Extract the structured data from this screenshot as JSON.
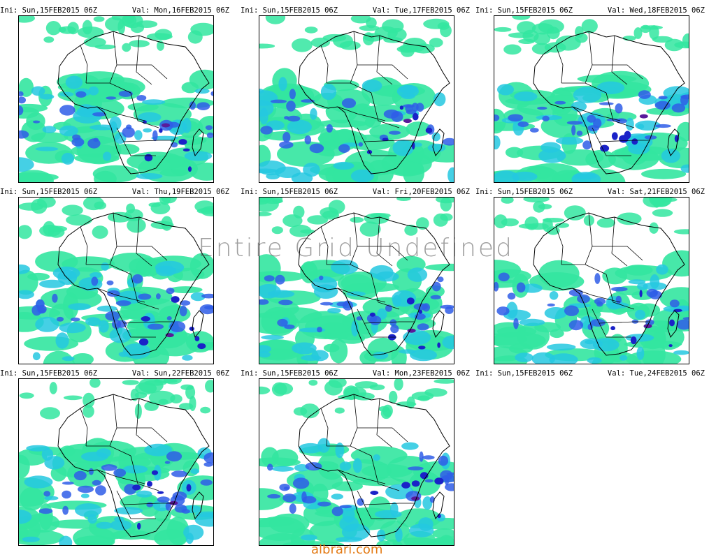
{
  "panels": [
    {
      "ini": "Ini: Sun,15FEB2015 06Z",
      "val": "Val: Mon,16FEB2015 06Z",
      "has_map": true
    },
    {
      "ini": "Ini: Sun,15FEB2015 06Z",
      "val": "Val: Tue,17FEB2015 06Z",
      "has_map": true
    },
    {
      "ini": "Ini: Sun,15FEB2015 06Z",
      "val": "Val: Wed,18FEB2015 06Z",
      "has_map": true
    },
    {
      "ini": "Ini: Sun,15FEB2015 06Z",
      "val": "Val: Thu,19FEB2015 06Z",
      "has_map": true
    },
    {
      "ini": "Ini: Sun,15FEB2015 06Z",
      "val": "Val: Fri,20FEB2015 06Z",
      "has_map": true
    },
    {
      "ini": "Ini: Sun,15FEB2015 06Z",
      "val": "Val: Sat,21FEB2015 06Z",
      "has_map": true
    },
    {
      "ini": "Ini: Sun,15FEB2015 06Z",
      "val": "Val: Sun,22FEB2015 06Z",
      "has_map": true
    },
    {
      "ini": "Ini: Sun,15FEB2015 06Z",
      "val": "Val: Mon,23FEB2015 06Z",
      "has_map": true
    },
    {
      "ini": "Ini: Sun,15FEB2015 06Z",
      "val": "Val: Tue,24FEB2015 06Z",
      "has_map": false
    }
  ],
  "watermark": "Entire Grid Undefined",
  "footer": "albrari.com",
  "colors": {
    "light_green": "#33e6a0",
    "cyan": "#25c8e0",
    "blue": "#2f5de8",
    "dark_blue": "#1a22c8",
    "purple": "#5a1a9a",
    "border": "#000000",
    "footer": "#e37a14"
  }
}
